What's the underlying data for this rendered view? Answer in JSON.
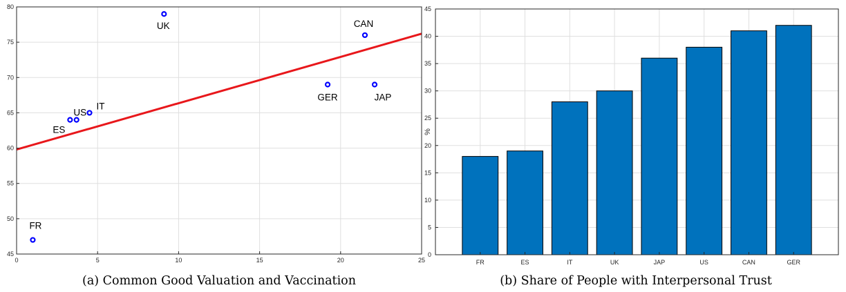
{
  "chart_data": [
    {
      "type": "scatter",
      "caption": "(a) Common Good Valuation and Vaccination",
      "xlim": [
        0,
        25
      ],
      "ylim": [
        45,
        80
      ],
      "xticks": [
        0,
        5,
        10,
        15,
        20,
        25
      ],
      "yticks": [
        45,
        50,
        55,
        60,
        65,
        70,
        75,
        80
      ],
      "grid": true,
      "points": [
        {
          "label": "FR",
          "x": 1.0,
          "y": 47
        },
        {
          "label": "ES",
          "x": 3.3,
          "y": 64
        },
        {
          "label": "US",
          "x": 3.7,
          "y": 64
        },
        {
          "label": "IT",
          "x": 4.5,
          "y": 65
        },
        {
          "label": "UK",
          "x": 9.1,
          "y": 79
        },
        {
          "label": "GER",
          "x": 19.2,
          "y": 69
        },
        {
          "label": "CAN",
          "x": 21.5,
          "y": 76
        },
        {
          "label": "JAP",
          "x": 22.1,
          "y": 69
        }
      ],
      "fit_line": {
        "x": [
          0,
          25
        ],
        "y": [
          59.8,
          76.2
        ],
        "color": "#e8171b"
      },
      "marker_color": "#0000ff"
    },
    {
      "type": "bar",
      "caption": "(b) Share of People with Interpersonal Trust",
      "categories": [
        "FR",
        "ES",
        "IT",
        "UK",
        "JAP",
        "US",
        "CAN",
        "GER"
      ],
      "values": [
        18,
        19,
        28,
        30,
        36,
        38,
        41,
        42
      ],
      "ylabel": "%",
      "ylim": [
        0,
        45
      ],
      "yticks": [
        0,
        5,
        10,
        15,
        20,
        25,
        30,
        35,
        40,
        45
      ],
      "grid": true,
      "bar_color": "#0072bd"
    }
  ]
}
